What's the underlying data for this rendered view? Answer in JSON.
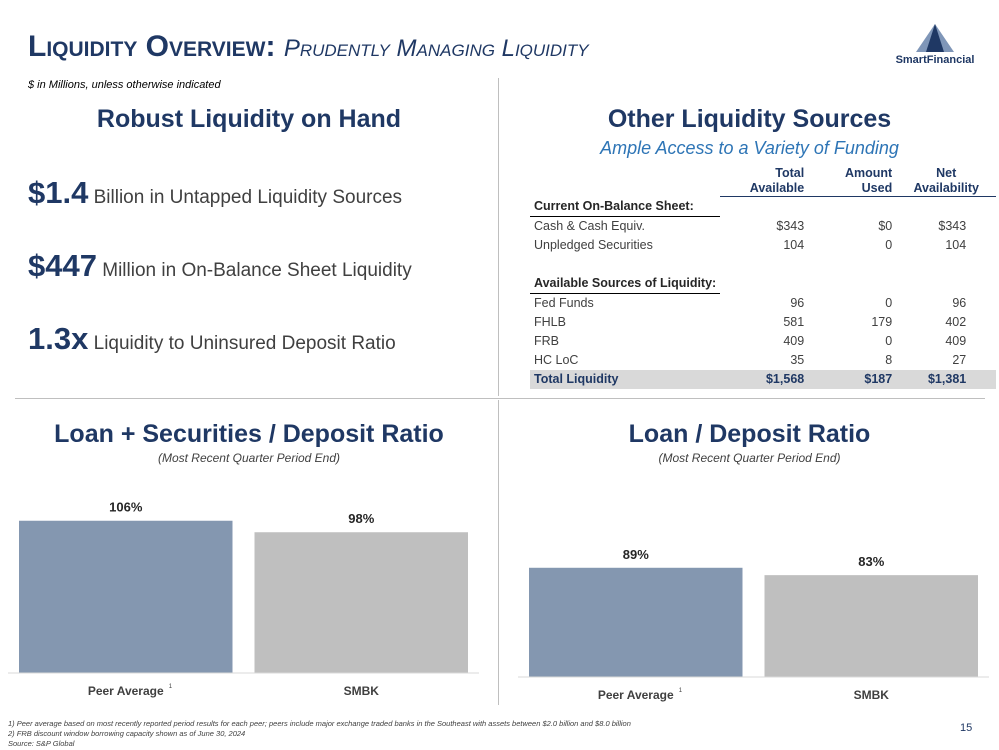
{
  "header": {
    "title": "Liquidity Overview:",
    "title_italic": "Prudently Managing Liquidity",
    "subtitle": "$ in Millions, unless otherwise indicated",
    "logo": "SmartFinancial"
  },
  "left_panel": {
    "heading": "Robust Liquidity on Hand",
    "items": [
      {
        "big": "$1.4",
        "text": "Billion in Untapped Liquidity Sources"
      },
      {
        "big": "$447",
        "text": "Million in On-Balance Sheet Liquidity"
      },
      {
        "big": "1.3x",
        "text": "Liquidity to Uninsured Deposit Ratio"
      }
    ]
  },
  "right_panel": {
    "heading": "Other Liquidity Sources",
    "subheading": "Ample Access to a Variety of Funding"
  },
  "table": {
    "columns": [
      [
        "Total",
        "Available"
      ],
      [
        "Amount",
        "Used"
      ],
      [
        "Net",
        "Availability"
      ]
    ],
    "sections": [
      {
        "title": "Current On-Balance Sheet:",
        "rows": [
          [
            "Cash & Cash Equiv.",
            "$343",
            "$0",
            "$343"
          ],
          [
            "Unpledged Securities",
            "104",
            "0",
            "104"
          ]
        ]
      },
      {
        "title": "Available Sources of Liquidity:",
        "rows": [
          [
            "Fed Funds",
            "96",
            "0",
            "96"
          ],
          [
            "FHLB",
            "581",
            "179",
            "402"
          ],
          [
            "FRB",
            "409",
            "0",
            "409"
          ],
          [
            "HC LoC",
            "35",
            "8",
            "27"
          ]
        ]
      }
    ],
    "total": [
      "Total Liquidity",
      "$1,568",
      "$187",
      "$1,381"
    ]
  },
  "chart_data": [
    {
      "type": "bar",
      "title": "Loan + Securities / Deposit Ratio",
      "subtitle": "(Most Recent Quarter Period End)",
      "categories": [
        "Peer Average",
        "SMBK"
      ],
      "category_notes": [
        "1",
        null
      ],
      "values": [
        106,
        98
      ],
      "value_labels": [
        "106%",
        "98%"
      ],
      "colors": [
        "#8497b0",
        "#bfbfbf"
      ],
      "ylim": [
        0,
        110
      ]
    },
    {
      "type": "bar",
      "title": "Loan / Deposit Ratio",
      "subtitle": "(Most Recent Quarter Period End)",
      "categories": [
        "Peer Average",
        "SMBK"
      ],
      "category_notes": [
        "1",
        null
      ],
      "values": [
        89,
        83
      ],
      "value_labels": [
        "89%",
        "83%"
      ],
      "colors": [
        "#8497b0",
        "#bfbfbf"
      ],
      "ylim": [
        0,
        110
      ]
    }
  ],
  "footnotes": [
    "1)  Peer average based on most recently reported period results for each peer; peers include major exchange traded banks in the Southeast with assets between $2.0 billion and $8.0 billion",
    "2)  FRB discount window borrowing capacity shown as of June 30, 2024",
    "Source: S&P Global"
  ],
  "page_number": "15"
}
